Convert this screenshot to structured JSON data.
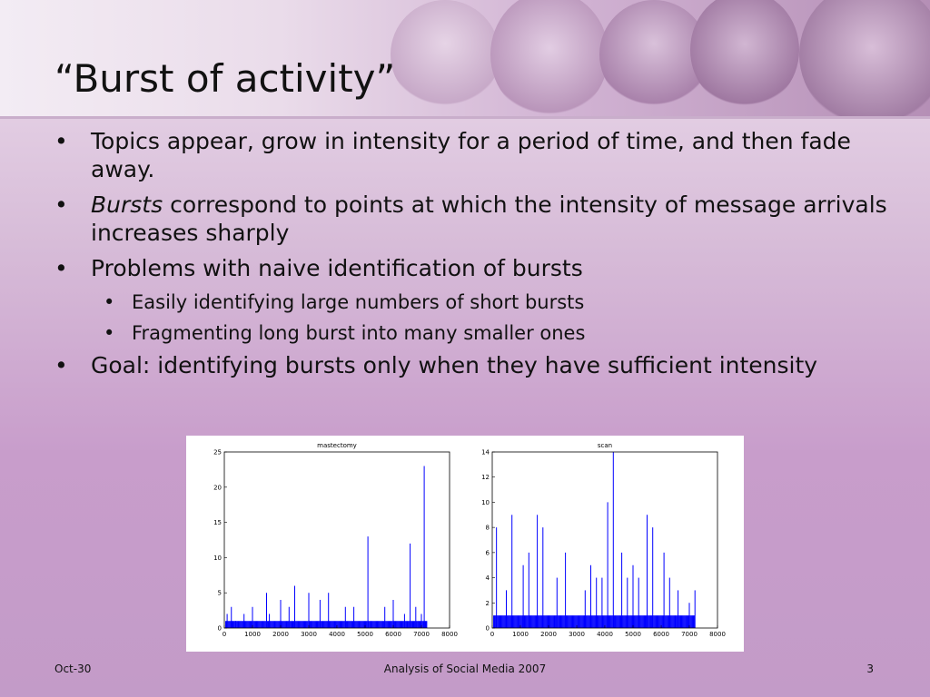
{
  "slide": {
    "title": "“Burst of activity”",
    "bullets": [
      {
        "level": 1,
        "text": "Topics appear, grow in intensity for a period of time, and then fade away."
      },
      {
        "level": 1,
        "em": "Bursts",
        "text": " correspond to points at which the intensity of message arrivals increases sharply"
      },
      {
        "level": 1,
        "text": "Problems with naive identification of bursts"
      },
      {
        "level": 2,
        "text": "Easily identifying large numbers of short bursts"
      },
      {
        "level": 2,
        "text": "Fragmenting long burst into many smaller ones"
      },
      {
        "level": 1,
        "text": "Goal: identifying bursts only when they have sufficient intensity"
      }
    ],
    "colors": {
      "bar": "#0000ff",
      "frame": "#000000"
    }
  },
  "footer": {
    "left": "Oct-30",
    "center": "Analysis of Social Media 2007",
    "right": "3"
  },
  "chart_data": [
    {
      "type": "bar",
      "title": "mastectomy",
      "xlim": [
        0,
        8000
      ],
      "ylim": [
        0,
        25
      ],
      "xticks": [
        "0",
        "1000",
        "2000",
        "3000",
        "4000",
        "5000",
        "6000",
        "7000",
        "8000"
      ],
      "yticks": [
        "0",
        "5",
        "10",
        "15",
        "20",
        "25"
      ],
      "x": [
        100,
        250,
        400,
        700,
        1000,
        1500,
        1600,
        2000,
        2300,
        2500,
        3000,
        3400,
        3700,
        4300,
        4600,
        5100,
        5700,
        6000,
        6400,
        6600,
        6800,
        7000,
        7100
      ],
      "values": [
        2,
        3,
        1,
        2,
        3,
        5,
        2,
        4,
        3,
        6,
        5,
        4,
        5,
        3,
        3,
        13,
        3,
        4,
        2,
        12,
        3,
        2,
        23
      ]
    },
    {
      "type": "bar",
      "title": "scan",
      "xlim": [
        0,
        8000
      ],
      "ylim": [
        0,
        14
      ],
      "xticks": [
        "0",
        "1000",
        "2000",
        "3000",
        "4000",
        "5000",
        "6000",
        "7000",
        "8000"
      ],
      "yticks": [
        "0",
        "2",
        "4",
        "6",
        "8",
        "10",
        "12",
        "14"
      ],
      "x": [
        150,
        500,
        700,
        1100,
        1300,
        1600,
        1800,
        2300,
        2600,
        3300,
        3500,
        3700,
        3900,
        4100,
        4300,
        4600,
        4800,
        5000,
        5200,
        5500,
        5700,
        6100,
        6300,
        6600,
        7000,
        7200
      ],
      "values": [
        8,
        3,
        9,
        5,
        6,
        9,
        8,
        4,
        6,
        3,
        5,
        4,
        4,
        10,
        14,
        6,
        4,
        5,
        4,
        9,
        8,
        6,
        4,
        3,
        2,
        3
      ]
    }
  ]
}
